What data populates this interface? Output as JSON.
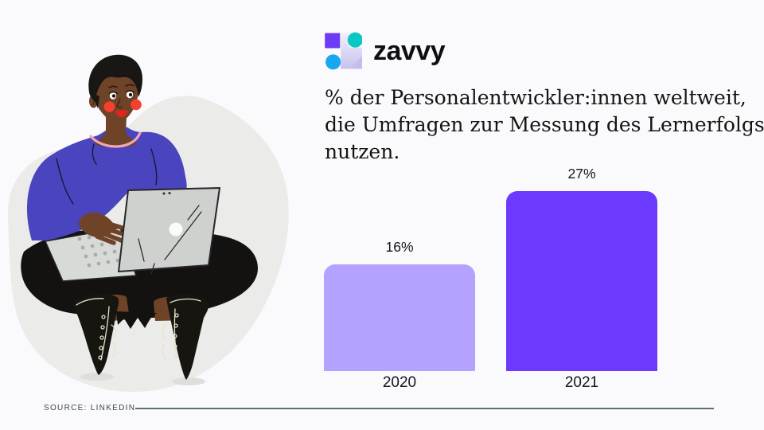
{
  "logo": {
    "wordmark": "zavvy"
  },
  "title": {
    "line1": "% der Personalentwickler:innen weltweit,",
    "line2": "die Umfragen zur Messung des Lernerfolgs",
    "line3": "nutzen."
  },
  "chart_data": {
    "type": "bar",
    "title": "% der Personalentwickler:innen weltweit, die Umfragen zur Messung des Lernerfolgs nutzen.",
    "categories": [
      "2020",
      "2021"
    ],
    "values": [
      16,
      27
    ],
    "value_labels": [
      "16%",
      "27%"
    ],
    "bar_colors": [
      "#B4A2FE",
      "#6C3AFE"
    ],
    "unit": "%",
    "ylim": [
      0,
      30
    ],
    "grid": false,
    "legend": false
  },
  "footer": {
    "source_label": "SOURCE: LINKEDIN"
  },
  "colors": {
    "background": "#FAFAFC",
    "text": "#161413",
    "logo_purple": "#6C3BF3",
    "logo_teal": "#0BC7C3",
    "logo_blue": "#18A7F0",
    "blob": "#EBEBE9",
    "skin": "#6F4327",
    "sweater": "#4A44BE",
    "pants": "#131210",
    "laptop": "#CFD1CE",
    "blush": "#F5402F",
    "necklace": "#F3A8B0"
  }
}
